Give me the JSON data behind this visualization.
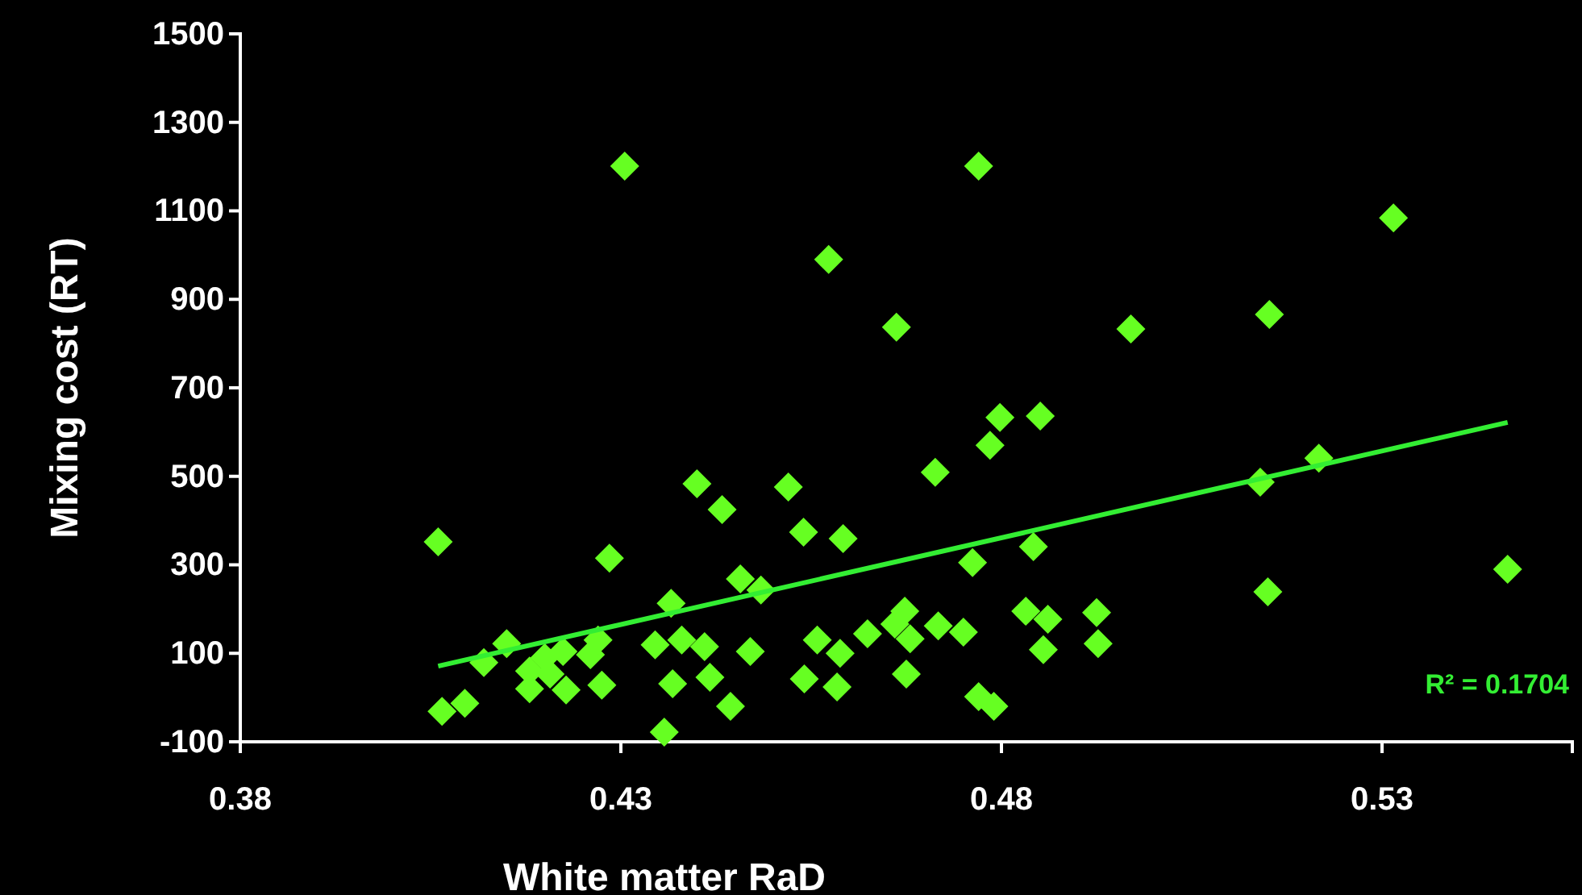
{
  "chart_data": {
    "type": "scatter",
    "xlabel": "White matter RaD",
    "ylabel": "Mixing cost (RT)",
    "xlim": [
      0.38,
      0.555
    ],
    "ylim": [
      -100,
      1500
    ],
    "xticks": [
      0.38,
      0.43,
      0.48,
      0.53
    ],
    "yticks": [
      -100,
      100,
      300,
      500,
      700,
      900,
      1100,
      1300,
      1500
    ],
    "grid": false,
    "marker": "diamond",
    "annotations": [
      "R² = 0.1704"
    ],
    "series": [
      {
        "color": "#66ff22",
        "x": [
          0.406,
          0.4065,
          0.4095,
          0.412,
          0.415,
          0.418,
          0.418,
          0.42,
          0.4207,
          0.4224,
          0.4228,
          0.426,
          0.427,
          0.4275,
          0.4285,
          0.4305,
          0.4345,
          0.4366,
          0.4368,
          0.4357,
          0.438,
          0.44,
          0.441,
          0.4417,
          0.4433,
          0.4444,
          0.4457,
          0.447,
          0.4484,
          0.452,
          0.454,
          0.4541,
          0.4558,
          0.4573,
          0.4584,
          0.4588,
          0.4592,
          0.4624,
          0.466,
          0.4662,
          0.4673,
          0.4675,
          0.468,
          0.4713,
          0.4717,
          0.475,
          0.4762,
          0.477,
          0.477,
          0.4785,
          0.479,
          0.4798,
          0.4832,
          0.4842,
          0.4851,
          0.4855,
          0.4861,
          0.4925,
          0.4927,
          0.497,
          0.514,
          0.515,
          0.5152,
          0.5217,
          0.5315,
          0.5465
        ],
        "values": [
          352,
          -31,
          -13,
          79,
          122,
          60,
          20,
          90,
          53,
          104,
          17,
          97,
          130,
          28,
          315,
          1201,
          119,
          213,
          31,
          -78,
          130,
          483,
          115,
          46,
          425,
          -20,
          268,
          104,
          243,
          476,
          374,
          42,
          130,
          990,
          24,
          100,
          359,
          144,
          166,
          837,
          195,
          53,
          133,
          509,
          162,
          148,
          305,
          1201,
          2,
          570,
          -20,
          633,
          195,
          341,
          636,
          108,
          177,
          192,
          122,
          833,
          487,
          239,
          866,
          541,
          1084,
          290
        ]
      },
      {
        "type": "line",
        "color": "#33ee33",
        "marker": "none",
        "line_style": "solid",
        "x": [
          0.406,
          0.5465
        ],
        "values": [
          71,
          622
        ]
      }
    ]
  }
}
